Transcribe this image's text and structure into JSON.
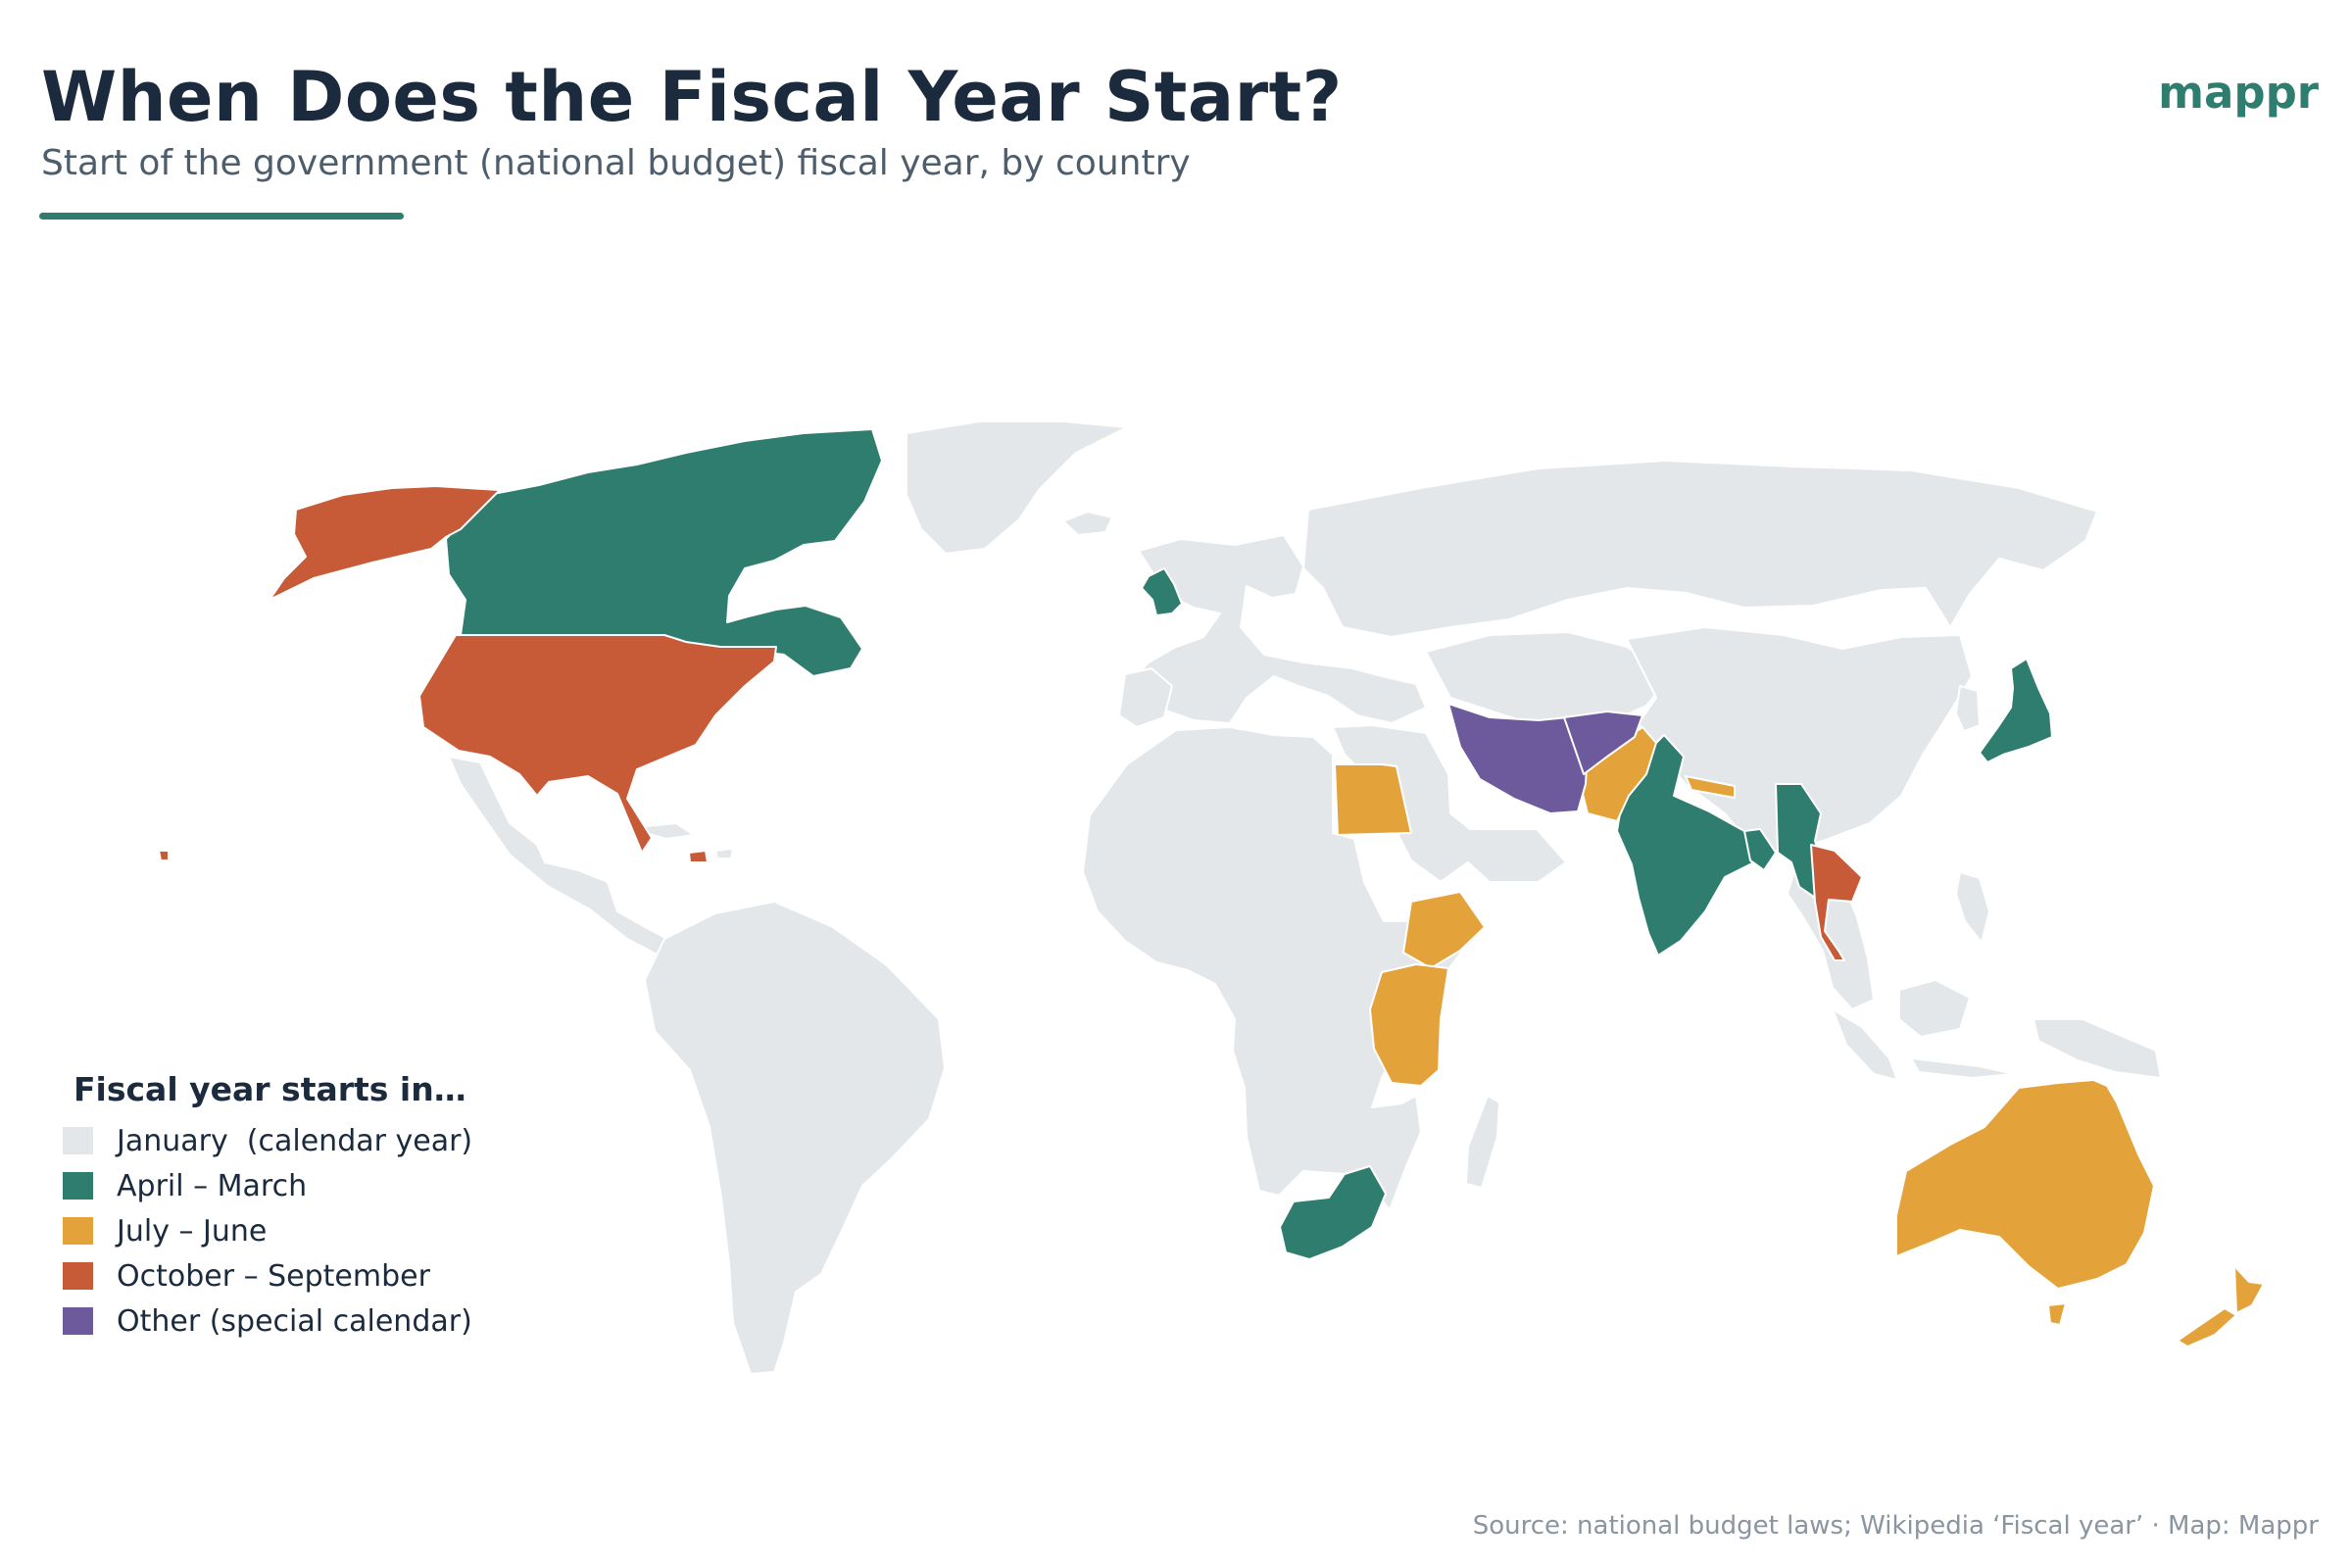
{
  "header": {
    "title": "When Does the Fiscal Year Start?",
    "subtitle": "Start of the government (national budget) fiscal year, by country",
    "brand": "mappr"
  },
  "colors": {
    "brand": "#2e7d6e",
    "january": "#e3e7e9",
    "april": "#2e7d6e",
    "july": "#e3a23a",
    "october": "#c75b38",
    "other": "#6c5a9c",
    "border": "#ffffff"
  },
  "legend": {
    "title": "Fiscal year starts in…",
    "items": [
      {
        "label": "January  (calendar year)",
        "color": "#e3e7e9"
      },
      {
        "label": "April – March",
        "color": "#2e7d6e"
      },
      {
        "label": "July – June",
        "color": "#e3a23a"
      },
      {
        "label": "October – September",
        "color": "#c75b38"
      },
      {
        "label": "Other (special calendar)",
        "color": "#6c5a9c"
      }
    ]
  },
  "map": {
    "categories": {
      "January (calendar year)": [
        "Russia",
        "China",
        "Brazil",
        "Argentina",
        "Mexico",
        "Greenland",
        "Europe (most)",
        "Africa (most)",
        "Southeast Asia (most)",
        "Central Asia",
        "Middle East (most)"
      ],
      "April – March": [
        "Canada",
        "United Kingdom",
        "India",
        "Bangladesh",
        "Myanmar",
        "Japan",
        "South Africa"
      ],
      "July – June": [
        "Egypt",
        "Ethiopia",
        "Kenya",
        "Uganda",
        "Tanzania",
        "Pakistan",
        "Nepal",
        "Bhutan",
        "Australia",
        "New Zealand"
      ],
      "October – September": [
        "United States",
        "Thailand",
        "Haiti"
      ],
      "Other (special calendar)": [
        "Iran",
        "Afghanistan"
      ]
    }
  },
  "footer": {
    "source": "Source: national budget laws; Wikipedia ‘Fiscal year’ · Map: Mappr"
  }
}
